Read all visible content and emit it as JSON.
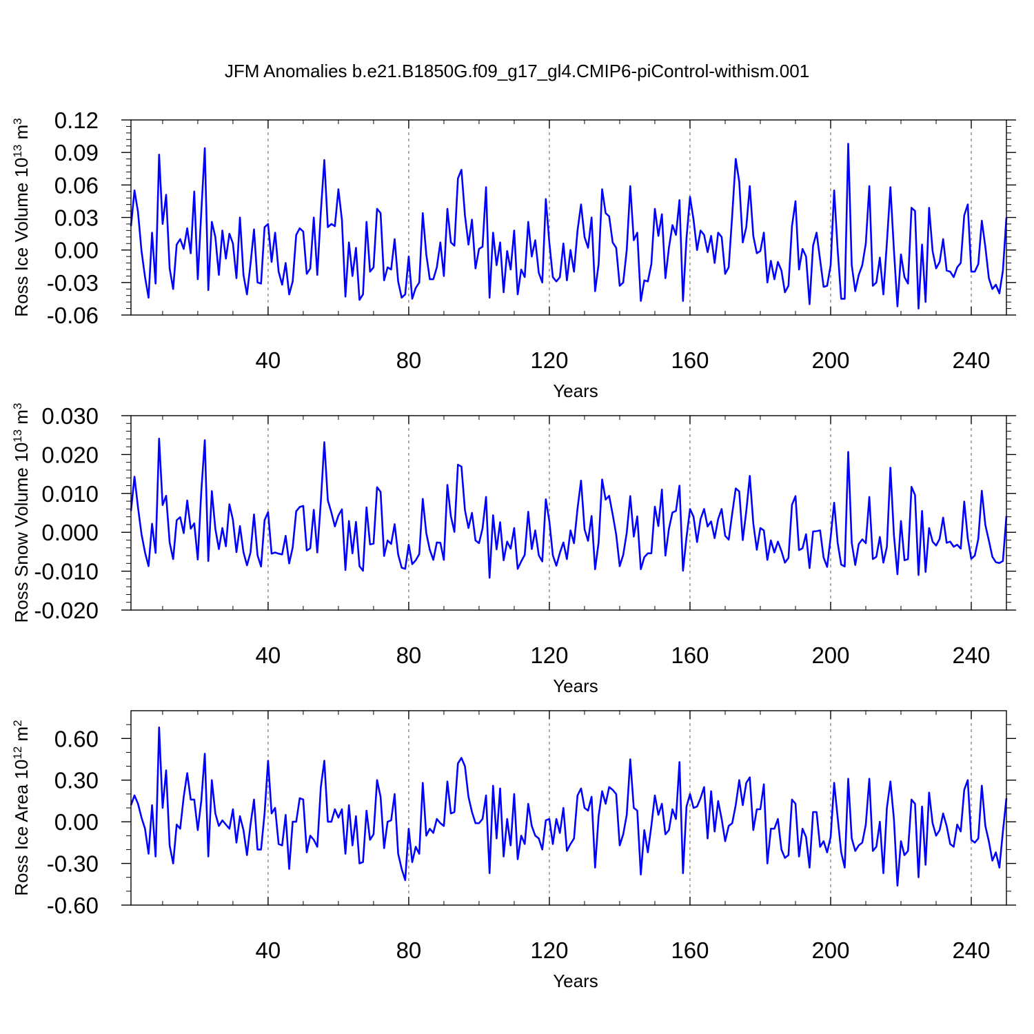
{
  "title": "JFM Anomalies b.e21.B1850G.f09_g17_gl4.CMIP6-piControl-withism.001",
  "colors": {
    "line": "#0000ff",
    "axis": "#000000",
    "grid": "#555555"
  },
  "chart_data": [
    {
      "type": "line",
      "title": "JFM Anomalies b.e21.B1850G.f09_g17_gl4.CMIP6-piControl-withism.001",
      "xlabel": "Years",
      "ylabel": {
        "base": "Ross Ice Volume 10",
        "exp": "13",
        "unit": " m",
        "unit_exp": "3"
      },
      "xlim": [
        1,
        250
      ],
      "ylim": [
        -0.06,
        0.12
      ],
      "xticks": [
        40,
        80,
        120,
        160,
        200,
        240
      ],
      "xtick_labels": [
        "40",
        "80",
        "120",
        "160",
        "200",
        "240"
      ],
      "yticks": [
        -0.06,
        -0.03,
        0.0,
        0.03,
        0.06,
        0.09,
        0.12
      ],
      "ytick_labels": [
        "-0.06",
        "-0.03",
        "0.00",
        "0.03",
        "0.06",
        "0.09",
        "0.12"
      ],
      "series": [
        {
          "name": "Ross Ice Volume",
          "x_start": 1,
          "x_step": 1,
          "values": [
            0.022,
            0.055,
            0.035,
            -0.001,
            -0.025,
            -0.044,
            0.016,
            -0.031,
            0.088,
            0.024,
            0.051,
            -0.017,
            -0.036,
            0.005,
            0.01,
            0.001,
            0.02,
            -0.003,
            0.054,
            -0.027,
            0.035,
            0.094,
            -0.037,
            0.026,
            0.012,
            -0.023,
            0.018,
            -0.008,
            0.015,
            0.006,
            -0.026,
            0.03,
            -0.023,
            -0.041,
            -0.013,
            0.019,
            -0.03,
            -0.031,
            0.021,
            0.024,
            -0.011,
            0.016,
            -0.02,
            -0.032,
            -0.012,
            -0.041,
            -0.029,
            0.014,
            0.02,
            0.017,
            -0.022,
            -0.017,
            0.03,
            -0.023,
            0.035,
            0.083,
            0.021,
            0.024,
            0.022,
            0.056,
            0.028,
            -0.043,
            0.007,
            -0.024,
            0.002,
            -0.046,
            -0.041,
            0.026,
            -0.02,
            -0.016,
            0.038,
            0.034,
            -0.028,
            -0.016,
            -0.018,
            0.01,
            -0.029,
            -0.044,
            -0.041,
            -0.006,
            -0.045,
            -0.035,
            -0.03,
            0.034,
            -0.004,
            -0.027,
            -0.027,
            -0.016,
            0.007,
            -0.024,
            0.038,
            0.007,
            0.004,
            0.066,
            0.074,
            0.032,
            0.005,
            0.028,
            -0.017,
            0.001,
            0.003,
            0.058,
            -0.044,
            0.016,
            -0.014,
            0.007,
            -0.039,
            -0.001,
            -0.018,
            0.018,
            -0.041,
            -0.018,
            -0.025,
            0.026,
            -0.006,
            0.009,
            -0.021,
            -0.03,
            0.047,
            0.007,
            -0.025,
            -0.029,
            -0.025,
            0.006,
            -0.028,
            0.0,
            -0.02,
            0.018,
            0.042,
            0.012,
            0.002,
            0.03,
            -0.038,
            -0.013,
            0.056,
            0.034,
            0.031,
            0.007,
            0.002,
            -0.033,
            -0.03,
            0.0,
            0.059,
            0.009,
            0.016,
            -0.047,
            -0.028,
            -0.029,
            -0.013,
            0.038,
            0.013,
            0.033,
            -0.026,
            0.002,
            0.023,
            0.014,
            0.046,
            -0.047,
            0.011,
            0.049,
            0.028,
            0.0,
            0.018,
            0.014,
            -0.002,
            0.013,
            -0.012,
            0.016,
            0.012,
            -0.022,
            -0.016,
            0.032,
            0.084,
            0.063,
            0.007,
            0.021,
            0.059,
            0.013,
            -0.003,
            -0.001,
            0.016,
            -0.03,
            -0.01,
            -0.027,
            -0.011,
            -0.019,
            -0.039,
            -0.033,
            0.022,
            0.045,
            -0.018,
            0.001,
            -0.006,
            -0.05,
            0.004,
            0.016,
            -0.009,
            -0.034,
            -0.033,
            -0.014,
            0.055,
            0.0,
            -0.045,
            -0.045,
            0.098,
            -0.014,
            -0.038,
            -0.023,
            -0.014,
            0.006,
            0.059,
            -0.033,
            -0.03,
            -0.007,
            -0.041,
            0.007,
            0.058,
            0.0,
            -0.052,
            -0.004,
            -0.025,
            -0.031,
            0.039,
            0.036,
            -0.054,
            0.005,
            -0.048,
            0.039,
            -0.001,
            -0.017,
            -0.011,
            0.01,
            -0.019,
            -0.02,
            -0.025,
            -0.016,
            -0.012,
            0.032,
            0.042,
            -0.02,
            -0.02,
            -0.013,
            0.027,
            0.003,
            -0.026,
            -0.036,
            -0.032,
            -0.04,
            -0.019,
            0.03
          ]
        }
      ]
    },
    {
      "type": "line",
      "xlabel": "Years",
      "ylabel": {
        "base": "Ross Snow Volume 10",
        "exp": "13",
        "unit": " m",
        "unit_exp": "3"
      },
      "xlim": [
        1,
        250
      ],
      "ylim": [
        -0.02,
        0.03
      ],
      "xticks": [
        40,
        80,
        120,
        160,
        200,
        240
      ],
      "xtick_labels": [
        "40",
        "80",
        "120",
        "160",
        "200",
        "240"
      ],
      "yticks": [
        -0.02,
        -0.01,
        0.0,
        0.01,
        0.02,
        0.03
      ],
      "ytick_labels": [
        "-0.020",
        "-0.010",
        "0.000",
        "0.010",
        "0.020",
        "0.030"
      ],
      "series": [
        {
          "name": "Ross Snow Volume",
          "x_start": 1,
          "x_step": 1,
          "values": [
            0.0055,
            0.0143,
            0.0064,
            -0.0005,
            -0.0052,
            -0.0087,
            0.0022,
            -0.0053,
            0.0241,
            0.007,
            0.0094,
            -0.0026,
            -0.0069,
            0.0031,
            0.0039,
            -0.0002,
            0.0082,
            0.0009,
            0.0023,
            -0.007,
            0.0105,
            0.0237,
            -0.0074,
            0.0106,
            0.0009,
            -0.0043,
            0.0011,
            -0.0036,
            0.0072,
            0.0032,
            -0.0051,
            0.0016,
            -0.0051,
            -0.0085,
            -0.0052,
            0.0046,
            -0.0059,
            -0.0088,
            0.0031,
            0.0052,
            -0.0055,
            -0.0052,
            -0.0055,
            -0.0057,
            -0.0009,
            -0.008,
            -0.0039,
            0.0054,
            0.0065,
            0.0068,
            -0.0047,
            -0.0041,
            0.0058,
            -0.0052,
            0.0078,
            0.0232,
            0.0082,
            0.0051,
            0.0015,
            0.0043,
            0.0059,
            -0.0097,
            0.0029,
            -0.0054,
            0.0027,
            -0.0087,
            -0.0099,
            0.0064,
            -0.0031,
            -0.0029,
            0.0116,
            0.0104,
            -0.0061,
            -0.0021,
            -0.003,
            0.0021,
            -0.0057,
            -0.0091,
            -0.0094,
            -0.0032,
            -0.0082,
            -0.0072,
            -0.0056,
            0.0086,
            -0.0002,
            -0.0045,
            -0.0071,
            -0.0026,
            -0.0027,
            -0.0071,
            0.0122,
            0.0041,
            0.0001,
            0.0174,
            0.0169,
            0.0057,
            0.0011,
            0.005,
            -0.0021,
            -0.0028,
            0.001,
            0.0091,
            -0.0117,
            0.0044,
            -0.0044,
            0.0026,
            -0.0072,
            -0.0024,
            -0.0042,
            0.0011,
            -0.0094,
            -0.0075,
            -0.0058,
            0.0053,
            -0.0043,
            0.0005,
            -0.0059,
            -0.0075,
            0.0085,
            0.0029,
            -0.0059,
            -0.0086,
            -0.0053,
            -0.0026,
            -0.0069,
            0.0005,
            -0.0028,
            0.0061,
            0.0133,
            0.0008,
            -0.0022,
            0.0042,
            -0.0095,
            -0.0026,
            0.0136,
            0.0084,
            0.0094,
            0.0046,
            -0.0006,
            -0.0087,
            -0.0058,
            -0.0001,
            0.0093,
            -0.0011,
            0.0041,
            -0.0095,
            -0.0064,
            -0.0054,
            -0.0054,
            0.0066,
            0.0016,
            0.011,
            -0.006,
            0.0009,
            0.0051,
            0.0055,
            0.012,
            -0.0099,
            -0.0013,
            0.006,
            0.004,
            -0.0025,
            0.0034,
            0.006,
            0.0015,
            0.0028,
            -0.0015,
            0.0034,
            0.006,
            -0.0009,
            -0.0019,
            0.0048,
            0.0113,
            0.0105,
            -0.002,
            0.0054,
            0.0145,
            0.0023,
            -0.0045,
            0.0011,
            0.0005,
            -0.0071,
            -0.0021,
            -0.0052,
            -0.0024,
            -0.0048,
            -0.0078,
            -0.0066,
            0.0071,
            0.0093,
            -0.0046,
            -0.0041,
            -0.0005,
            -0.0092,
            0.0002,
            0.0003,
            0.0005,
            -0.0065,
            -0.0089,
            -0.0013,
            0.0076,
            -0.0027,
            -0.0083,
            -0.0088,
            0.0207,
            -0.0027,
            -0.0084,
            -0.003,
            -0.0018,
            -0.0028,
            0.0091,
            -0.0069,
            -0.0063,
            -0.0012,
            -0.0078,
            -0.0037,
            0.0166,
            -0.0007,
            -0.0108,
            0.0029,
            -0.0072,
            -0.0069,
            0.0117,
            0.0096,
            -0.011,
            0.0055,
            -0.0102,
            0.0011,
            -0.0024,
            -0.0034,
            -0.0017,
            0.0038,
            -0.0027,
            -0.0024,
            -0.0037,
            -0.0032,
            -0.0042,
            0.0079,
            -0.0015,
            -0.0068,
            -0.006,
            -0.0017,
            0.0107,
            0.0019,
            -0.0021,
            -0.0063,
            -0.0077,
            -0.0079,
            -0.0074,
            0.0042
          ]
        }
      ]
    },
    {
      "type": "line",
      "xlabel": "Years",
      "ylabel": {
        "base": "Ross Ice Area 10",
        "exp": "12",
        "unit": " m",
        "unit_exp": "2"
      },
      "xlim": [
        1,
        250
      ],
      "ylim": [
        -0.6,
        0.8
      ],
      "xticks": [
        40,
        80,
        120,
        160,
        200,
        240
      ],
      "xtick_labels": [
        "40",
        "80",
        "120",
        "160",
        "200",
        "240"
      ],
      "yticks": [
        -0.6,
        -0.3,
        0.0,
        0.3,
        0.6
      ],
      "ytick_labels": [
        "-0.60",
        "-0.30",
        "0.00",
        "0.30",
        "0.60"
      ],
      "series": [
        {
          "name": "Ross Ice Area",
          "x_start": 1,
          "x_step": 1,
          "values": [
            0.12,
            0.19,
            0.13,
            0.03,
            -0.05,
            -0.23,
            0.12,
            -0.25,
            0.68,
            0.1,
            0.37,
            -0.17,
            -0.3,
            -0.02,
            -0.05,
            0.18,
            0.35,
            0.16,
            0.16,
            -0.06,
            0.15,
            0.49,
            -0.25,
            0.3,
            0.06,
            -0.03,
            0.01,
            -0.02,
            -0.05,
            0.09,
            -0.15,
            0.04,
            -0.06,
            -0.24,
            -0.02,
            0.16,
            -0.2,
            -0.2,
            0.06,
            0.44,
            0.06,
            0.1,
            -0.16,
            -0.17,
            0.05,
            -0.34,
            0.0,
            0.0,
            0.17,
            0.16,
            -0.22,
            -0.1,
            -0.13,
            -0.18,
            0.25,
            0.44,
            0.0,
            0.0,
            0.09,
            0.03,
            0.09,
            -0.23,
            0.12,
            -0.17,
            0.04,
            -0.3,
            -0.29,
            0.08,
            -0.13,
            -0.09,
            0.3,
            0.18,
            -0.19,
            0.0,
            0.01,
            0.2,
            -0.23,
            -0.34,
            -0.42,
            -0.05,
            -0.29,
            -0.18,
            -0.23,
            0.28,
            -0.1,
            -0.05,
            -0.08,
            0.02,
            -0.01,
            -0.03,
            0.29,
            0.06,
            0.07,
            0.42,
            0.46,
            0.4,
            0.18,
            0.07,
            -0.01,
            -0.01,
            0.02,
            0.19,
            -0.37,
            0.26,
            -0.12,
            0.24,
            -0.25,
            0.02,
            -0.17,
            0.2,
            -0.27,
            -0.1,
            -0.16,
            0.13,
            -0.03,
            -0.1,
            -0.12,
            -0.2,
            0.01,
            0.02,
            -0.16,
            0.02,
            -0.08,
            0.1,
            -0.21,
            -0.16,
            -0.12,
            0.19,
            0.24,
            0.1,
            0.08,
            0.18,
            -0.33,
            0.04,
            0.22,
            0.13,
            0.25,
            0.23,
            0.2,
            -0.17,
            -0.09,
            0.05,
            0.45,
            0.1,
            0.08,
            -0.38,
            -0.06,
            -0.22,
            -0.03,
            0.19,
            0.05,
            0.13,
            -0.09,
            -0.06,
            0.09,
            0.02,
            0.43,
            -0.37,
            0.11,
            0.2,
            0.1,
            0.11,
            0.17,
            0.25,
            -0.12,
            0.22,
            -0.07,
            0.15,
            0.02,
            -0.14,
            -0.03,
            -0.01,
            0.12,
            0.3,
            0.12,
            0.28,
            0.32,
            -0.06,
            0.09,
            0.09,
            0.27,
            -0.3,
            -0.05,
            -0.05,
            0.02,
            -0.2,
            -0.26,
            -0.24,
            0.16,
            0.13,
            -0.25,
            -0.05,
            -0.11,
            -0.33,
            0.07,
            0.07,
            -0.18,
            -0.14,
            -0.22,
            -0.11,
            0.28,
            0.03,
            -0.22,
            -0.33,
            0.31,
            -0.12,
            -0.21,
            -0.17,
            -0.15,
            -0.02,
            0.31,
            -0.21,
            -0.18,
            0.0,
            -0.37,
            0.1,
            0.29,
            0.02,
            -0.46,
            -0.14,
            -0.24,
            -0.21,
            0.16,
            0.13,
            -0.4,
            0.11,
            -0.31,
            0.21,
            -0.01,
            -0.1,
            -0.06,
            0.06,
            -0.03,
            -0.16,
            -0.18,
            -0.02,
            -0.07,
            0.23,
            0.3,
            -0.13,
            -0.15,
            -0.12,
            0.26,
            -0.03,
            -0.14,
            -0.28,
            -0.22,
            -0.33,
            -0.07,
            0.17
          ]
        }
      ]
    }
  ]
}
